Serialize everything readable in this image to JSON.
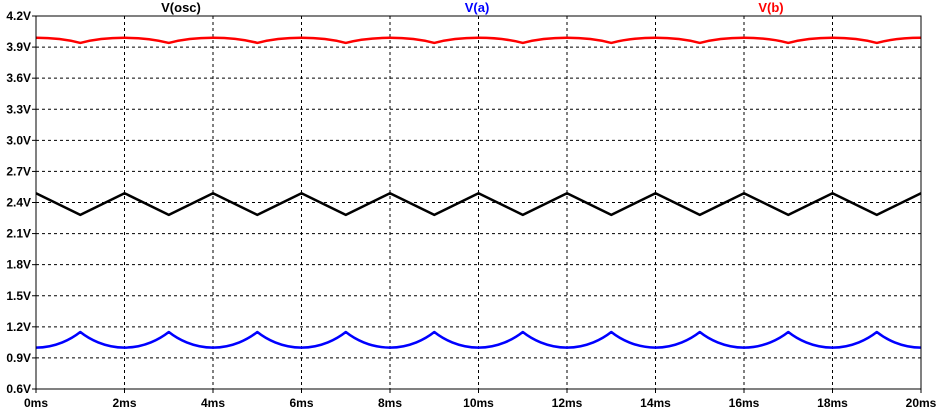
{
  "chart_data": {
    "type": "line",
    "x_ticks": [
      "0ms",
      "2ms",
      "4ms",
      "6ms",
      "8ms",
      "10ms",
      "12ms",
      "14ms",
      "16ms",
      "18ms",
      "20ms"
    ],
    "y_ticks": [
      "0.6V",
      "0.9V",
      "1.2V",
      "1.5V",
      "1.8V",
      "2.1V",
      "2.4V",
      "2.7V",
      "3.0V",
      "3.3V",
      "3.6V",
      "3.9V",
      "4.2V"
    ],
    "xlim": [
      0,
      20
    ],
    "ylim": [
      0.6,
      4.2
    ],
    "grid": true,
    "legend_placement": "top",
    "series": [
      {
        "name": "V(osc)",
        "color": "#000000",
        "shape": "triangle",
        "x": [
          0,
          1,
          2,
          3,
          4,
          5,
          6,
          7,
          8,
          9,
          10,
          11,
          12,
          13,
          14,
          15,
          16,
          17,
          18,
          19,
          20
        ],
        "y": [
          2.49,
          2.28,
          2.49,
          2.28,
          2.49,
          2.28,
          2.49,
          2.28,
          2.49,
          2.28,
          2.49,
          2.28,
          2.49,
          2.28,
          2.49,
          2.28,
          2.49,
          2.28,
          2.49,
          2.28,
          2.49
        ]
      },
      {
        "name": "V(a)",
        "color": "#0000ff",
        "shape": "cusp-up",
        "x": [
          0,
          1,
          2,
          3,
          4,
          5,
          6,
          7,
          8,
          9,
          10,
          11,
          12,
          13,
          14,
          15,
          16,
          17,
          18,
          19,
          20
        ],
        "y": [
          1.0,
          1.15,
          1.0,
          1.15,
          1.0,
          1.15,
          1.0,
          1.15,
          1.0,
          1.15,
          1.0,
          1.15,
          1.0,
          1.15,
          1.0,
          1.15,
          1.0,
          1.15,
          1.0,
          1.15,
          1.0
        ]
      },
      {
        "name": "V(b)",
        "color": "#ff0000",
        "shape": "cusp-down",
        "x": [
          0,
          1,
          2,
          3,
          4,
          5,
          6,
          7,
          8,
          9,
          10,
          11,
          12,
          13,
          14,
          15,
          16,
          17,
          18,
          19,
          20
        ],
        "y": [
          3.99,
          3.94,
          3.99,
          3.94,
          3.99,
          3.94,
          3.99,
          3.94,
          3.99,
          3.94,
          3.99,
          3.94,
          3.99,
          3.94,
          3.99,
          3.94,
          3.99,
          3.94,
          3.99,
          3.94,
          3.99
        ]
      }
    ]
  }
}
